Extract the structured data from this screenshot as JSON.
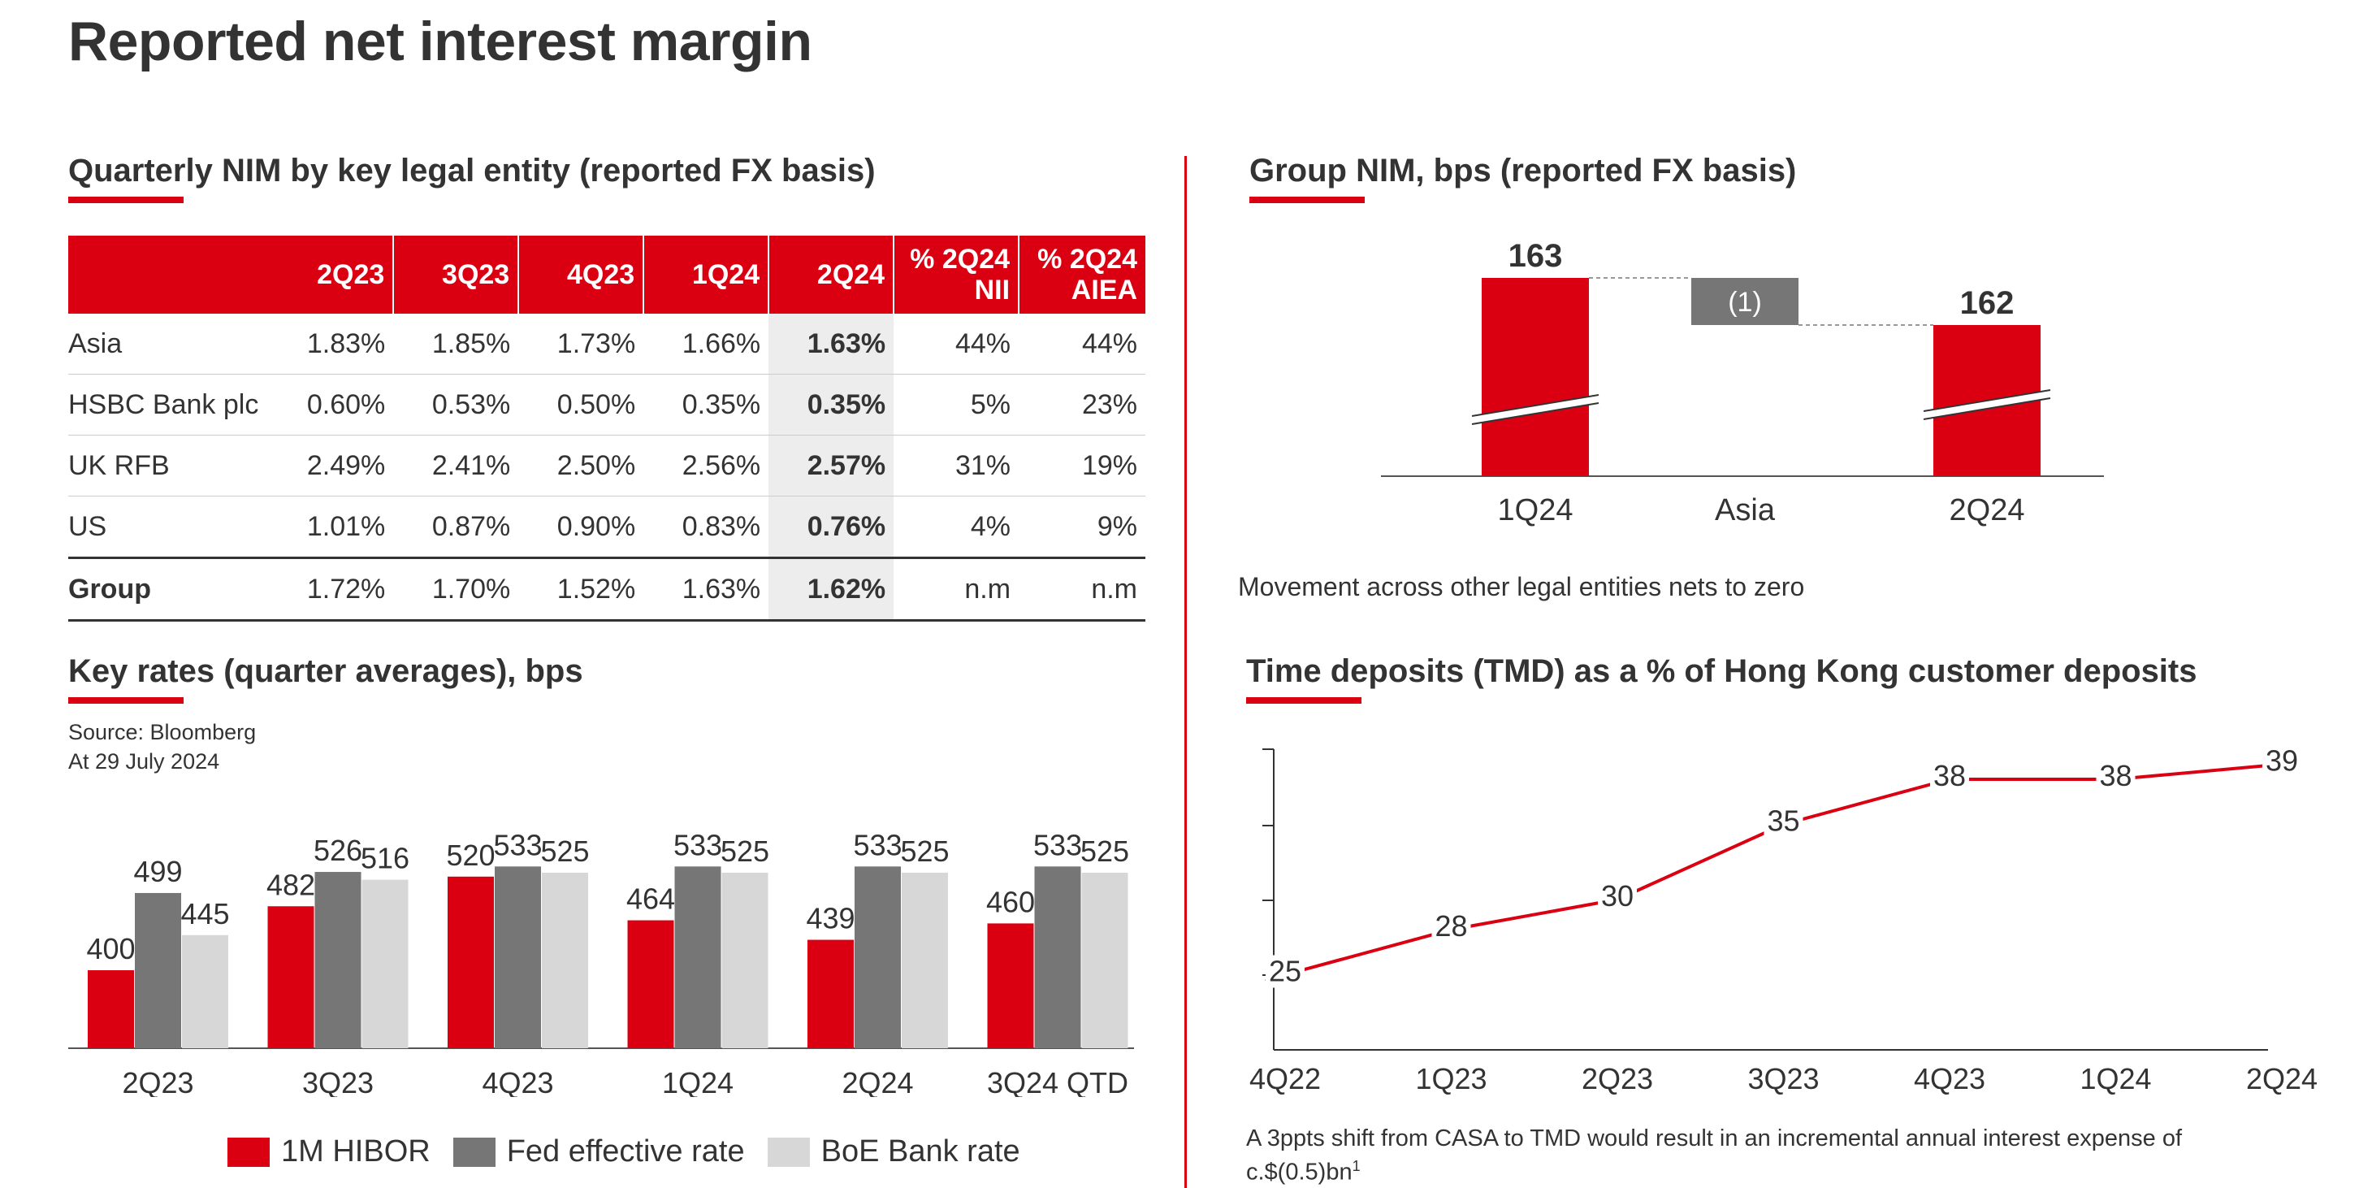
{
  "page_title": "Reported net interest margin",
  "table_section": {
    "title": "Quarterly NIM by key legal entity (reported FX basis)",
    "headers": [
      "",
      "2Q23",
      "3Q23",
      "4Q23",
      "1Q24",
      "2Q24",
      "% 2Q24 NII",
      "% 2Q24 AIEA"
    ],
    "header_lines": {
      "nii_1": "% 2Q24",
      "nii_2": "NII",
      "aiea_1": "% 2Q24",
      "aiea_2": "AIEA"
    },
    "rows": [
      {
        "label": "Asia",
        "values": [
          "1.83%",
          "1.85%",
          "1.73%",
          "1.66%",
          "1.63%",
          "44%",
          "44%"
        ]
      },
      {
        "label": "HSBC Bank plc",
        "values": [
          "0.60%",
          "0.53%",
          "0.50%",
          "0.35%",
          "0.35%",
          "5%",
          "23%"
        ]
      },
      {
        "label": "UK RFB",
        "values": [
          "2.49%",
          "2.41%",
          "2.50%",
          "2.56%",
          "2.57%",
          "31%",
          "19%"
        ]
      },
      {
        "label": "US",
        "values": [
          "1.01%",
          "0.87%",
          "0.90%",
          "0.83%",
          "0.76%",
          "4%",
          "9%"
        ]
      },
      {
        "label": "Group",
        "values": [
          "1.72%",
          "1.70%",
          "1.52%",
          "1.63%",
          "1.62%",
          "n.m",
          "n.m"
        ]
      }
    ]
  },
  "group_nim": {
    "title": "Group NIM, bps (reported FX basis)",
    "footnote": "Movement across other legal entities nets to zero"
  },
  "key_rates": {
    "title": "Key rates (quarter averages), bps",
    "source": "Source: Bloomberg",
    "as_of": "At 29 July 2024",
    "legend": [
      "1M HIBOR",
      "Fed effective rate",
      "BoE Bank rate"
    ]
  },
  "tmd": {
    "title": "Time deposits (TMD) as a % of Hong Kong customer deposits",
    "footnote": "A 3ppts shift from CASA to TMD would result in an incremental annual interest expense of",
    "footnote_2": "c.$(0.5)bn",
    "footnote_sup": "1"
  },
  "colors": {
    "red": "#db0011",
    "dark_grey": "#767676",
    "light_grey": "#d7d7d7"
  },
  "chart_data": [
    {
      "type": "bar",
      "subtype": "waterfall",
      "title": "Group NIM, bps (reported FX basis)",
      "categories": [
        "1Q24",
        "Asia",
        "2Q24"
      ],
      "values": [
        163,
        -1,
        162
      ],
      "value_labels": [
        "163",
        "(1)",
        "162"
      ],
      "axis_break": true
    },
    {
      "type": "bar",
      "title": "Key rates (quarter averages), bps",
      "categories": [
        "2Q23",
        "3Q23",
        "4Q23",
        "1Q24",
        "2Q24",
        "3Q24 QTD"
      ],
      "series": [
        {
          "name": "1M HIBOR",
          "values": [
            400,
            482,
            520,
            464,
            439,
            460
          ]
        },
        {
          "name": "Fed effective rate",
          "values": [
            499,
            526,
            533,
            533,
            533,
            533
          ]
        },
        {
          "name": "BoE Bank rate",
          "values": [
            445,
            516,
            525,
            525,
            525,
            525
          ]
        }
      ],
      "legend_position": "bottom"
    },
    {
      "type": "line",
      "title": "Time deposits (TMD) as a % of Hong Kong customer deposits",
      "categories": [
        "4Q22",
        "1Q23",
        "2Q23",
        "3Q23",
        "4Q23",
        "1Q24",
        "2Q24"
      ],
      "values": [
        25,
        28,
        30,
        35,
        38,
        38,
        39
      ]
    }
  ]
}
